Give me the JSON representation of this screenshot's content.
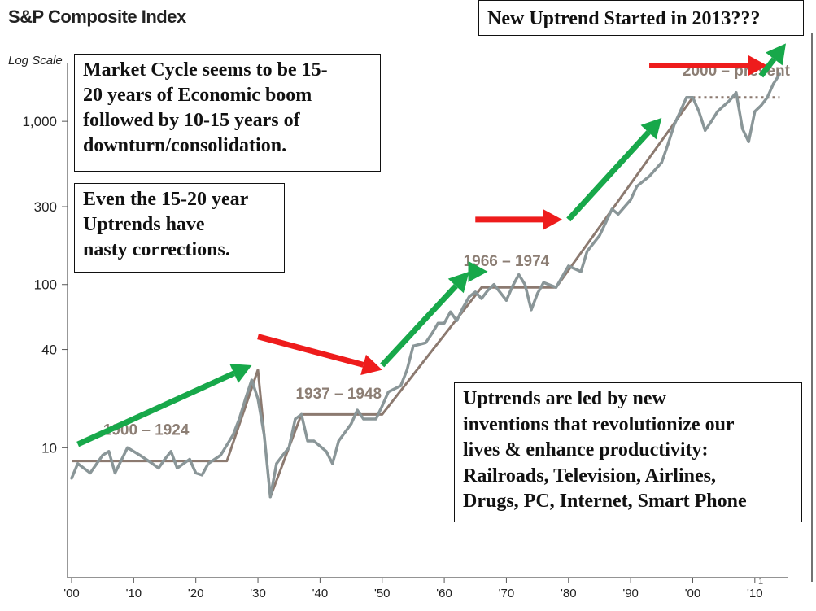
{
  "title": "S&P Composite Index",
  "annotations": {
    "cycle": [
      "Market Cycle seems to be 15-",
      "20 years of Economic boom",
      "followed by 10-15 years of",
      "downturn/consolidation."
    ],
    "corrections": [
      "Even the 15-20 year",
      "Uptrends have",
      "nasty corrections."
    ],
    "new_uptrend": "New Uptrend Started in 2013???",
    "inventions": [
      "Uptrends are led by new",
      "inventions that revolutionize our",
      "lives & enhance productivity:",
      "Railroads, Television, Airlines,",
      "Drugs, PC, Internet, Smart Phone"
    ]
  },
  "colors": {
    "index_line": "#8a9698",
    "trend_line": "#8c7a70",
    "up_arrow": "#17a84a",
    "flat_arrow": "#ee1c1c",
    "label": "#8c7e74"
  },
  "chart_data": {
    "type": "line",
    "title": "S&P Composite Index",
    "yscale": "log",
    "ylabel": "Log Scale",
    "x_ticks": [
      "'00",
      "'10",
      "'20",
      "'30",
      "'40",
      "'50",
      "'60",
      "'70",
      "'80",
      "'90",
      "'00",
      "'10"
    ],
    "x_tick_values": [
      1900,
      1910,
      1920,
      1930,
      1940,
      1950,
      1960,
      1970,
      1980,
      1990,
      2000,
      2010
    ],
    "y_ticks": [
      "10",
      "40",
      "100",
      "300",
      "1,000"
    ],
    "y_tick_values": [
      10,
      40,
      100,
      300,
      1000
    ],
    "xlim": [
      1900,
      2015
    ],
    "ylim": [
      1.6,
      3500
    ],
    "series": [
      {
        "values": [
          [
            1900,
            6.5
          ],
          [
            1901,
            8
          ],
          [
            1903,
            7
          ],
          [
            1905,
            9
          ],
          [
            1906,
            9.5
          ],
          [
            1907,
            7
          ],
          [
            1909,
            10
          ],
          [
            1911,
            9
          ],
          [
            1913,
            8
          ],
          [
            1914,
            7.5
          ],
          [
            1915,
            8.5
          ],
          [
            1916,
            9.5
          ],
          [
            1917,
            7.5
          ],
          [
            1919,
            8.5
          ],
          [
            1920,
            7
          ],
          [
            1921,
            6.8
          ],
          [
            1922,
            8
          ],
          [
            1924,
            9
          ],
          [
            1926,
            12
          ],
          [
            1927,
            15
          ],
          [
            1928,
            20
          ],
          [
            1929,
            26
          ],
          [
            1930,
            20
          ],
          [
            1931,
            12
          ],
          [
            1932,
            5
          ],
          [
            1933,
            8
          ],
          [
            1934,
            9
          ],
          [
            1935,
            10
          ],
          [
            1936,
            15
          ],
          [
            1937,
            16
          ],
          [
            1938,
            11
          ],
          [
            1939,
            11
          ],
          [
            1941,
            9.5
          ],
          [
            1942,
            8
          ],
          [
            1943,
            11
          ],
          [
            1945,
            14
          ],
          [
            1946,
            17
          ],
          [
            1947,
            15
          ],
          [
            1949,
            15
          ],
          [
            1950,
            18
          ],
          [
            1951,
            22
          ],
          [
            1953,
            24
          ],
          [
            1954,
            30
          ],
          [
            1955,
            42
          ],
          [
            1957,
            44
          ],
          [
            1958,
            50
          ],
          [
            1959,
            58
          ],
          [
            1960,
            58
          ],
          [
            1961,
            68
          ],
          [
            1962,
            60
          ],
          [
            1963,
            72
          ],
          [
            1964,
            84
          ],
          [
            1965,
            90
          ],
          [
            1966,
            82
          ],
          [
            1967,
            92
          ],
          [
            1968,
            100
          ],
          [
            1970,
            80
          ],
          [
            1971,
            98
          ],
          [
            1972,
            115
          ],
          [
            1973,
            100
          ],
          [
            1974,
            70
          ],
          [
            1975,
            88
          ],
          [
            1976,
            103
          ],
          [
            1978,
            96
          ],
          [
            1980,
            130
          ],
          [
            1982,
            120
          ],
          [
            1983,
            160
          ],
          [
            1985,
            200
          ],
          [
            1986,
            240
          ],
          [
            1987,
            290
          ],
          [
            1988,
            270
          ],
          [
            1990,
            330
          ],
          [
            1991,
            400
          ],
          [
            1993,
            460
          ],
          [
            1995,
            560
          ],
          [
            1996,
            720
          ],
          [
            1997,
            950
          ],
          [
            1998,
            1150
          ],
          [
            1999,
            1400
          ],
          [
            2000,
            1400
          ],
          [
            2001,
            1150
          ],
          [
            2002,
            880
          ],
          [
            2003,
            1000
          ],
          [
            2004,
            1150
          ],
          [
            2006,
            1350
          ],
          [
            2007,
            1500
          ],
          [
            2008,
            900
          ],
          [
            2009,
            750
          ],
          [
            2010,
            1150
          ],
          [
            2011,
            1250
          ],
          [
            2012,
            1400
          ],
          [
            2013,
            1700
          ],
          [
            2014,
            1950
          ]
        ]
      }
    ],
    "trend_lines": [
      {
        "values": [
          [
            1900,
            8.3
          ],
          [
            1925,
            8.3
          ],
          [
            1930,
            30
          ],
          [
            1932,
            5
          ],
          [
            1937,
            16
          ],
          [
            1950,
            16
          ],
          [
            1966,
            96
          ],
          [
            1978,
            96
          ],
          [
            2000,
            1400
          ]
        ]
      },
      {
        "dotted": true,
        "values": [
          [
            2000,
            1400
          ],
          [
            2014,
            1400
          ]
        ]
      }
    ],
    "arrows": [
      {
        "kind": "up",
        "from": [
          1901,
          10.5
        ],
        "to": [
          1929,
          32
        ]
      },
      {
        "kind": "flat",
        "from": [
          1930,
          48
        ],
        "to": [
          1950,
          30
        ]
      },
      {
        "kind": "up",
        "from": [
          1950,
          32
        ],
        "to": [
          1964,
          120
        ]
      },
      {
        "kind": "up",
        "from": [
          1966,
          120
        ],
        "to": [
          1967,
          120
        ]
      },
      {
        "kind": "flat",
        "from": [
          1965,
          250
        ],
        "to": [
          1979,
          250
        ]
      },
      {
        "kind": "up",
        "from": [
          1980,
          250
        ],
        "to": [
          1995,
          1050
        ]
      },
      {
        "kind": "flat",
        "from": [
          1993,
          2200
        ],
        "to": [
          2012,
          2200
        ]
      },
      {
        "kind": "up",
        "from": [
          2011,
          1900
        ],
        "to": [
          2015,
          3000
        ]
      }
    ],
    "period_labels": [
      {
        "text": "1900 – 1924",
        "x": 1912,
        "y": 12
      },
      {
        "text": "1937 – 1948",
        "x": 1943,
        "y": 20
      },
      {
        "text": "1966 – 1974",
        "x": 1970,
        "y": 130
      },
      {
        "text": "2000 – present",
        "x": 2007,
        "y": 1900
      }
    ]
  }
}
